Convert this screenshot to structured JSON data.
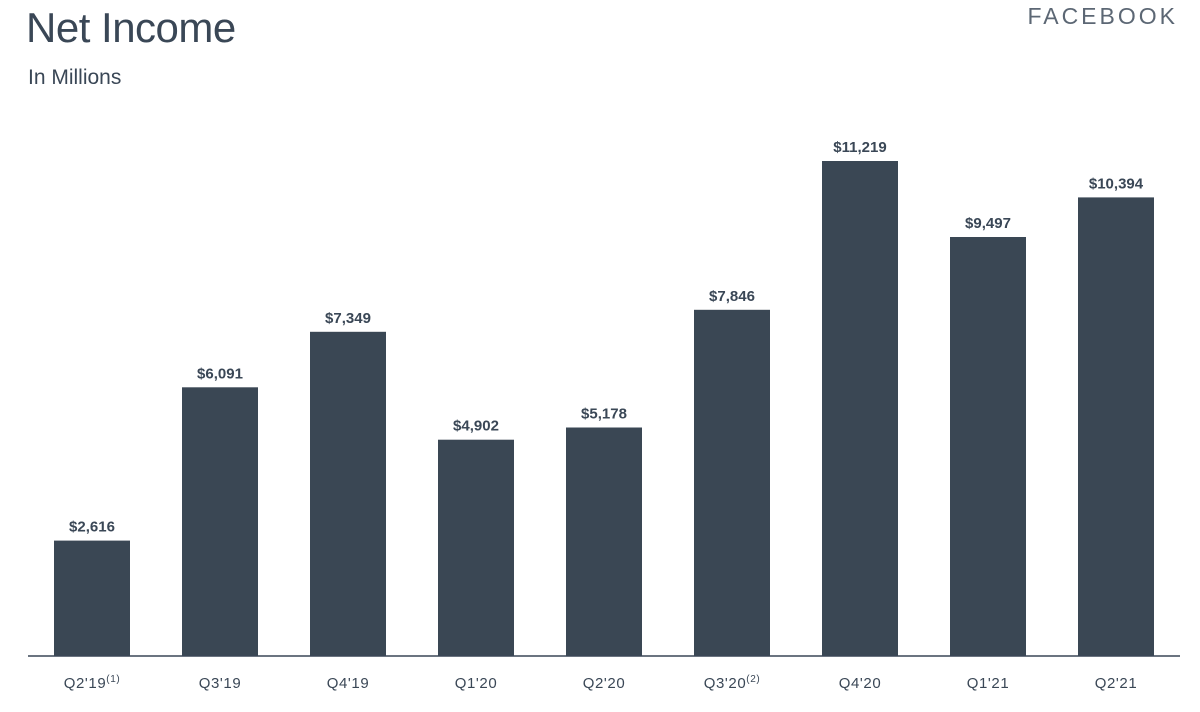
{
  "header": {
    "title": "Net Income",
    "subtitle": "In Millions",
    "brand": "FACEBOOK"
  },
  "colors": {
    "bar": "#3a4754",
    "text": "#3a4756",
    "axis": "#3a4756"
  },
  "chart_data": {
    "type": "bar",
    "title": "Net Income",
    "subtitle": "In Millions",
    "xlabel": "",
    "ylabel": "",
    "categories": [
      "Q2'19",
      "Q3'19",
      "Q4'19",
      "Q1'20",
      "Q2'20",
      "Q3'20",
      "Q4'20",
      "Q1'21",
      "Q2'21"
    ],
    "category_footnotes": [
      "(1)",
      "",
      "",
      "",
      "",
      "(2)",
      "",
      "",
      ""
    ],
    "values": [
      2616,
      6091,
      7349,
      4902,
      5178,
      7846,
      11219,
      9497,
      10394
    ],
    "value_labels": [
      "$2,616",
      "$6,091",
      "$7,349",
      "$4,902",
      "$5,178",
      "$7,846",
      "$11,219",
      "$9,497",
      "$10,394"
    ],
    "ylim": [
      0,
      11219
    ],
    "grid": false,
    "legend": "none"
  }
}
